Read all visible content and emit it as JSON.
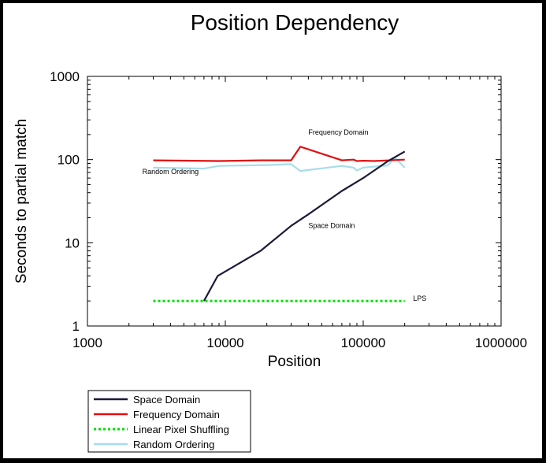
{
  "chart_data": {
    "type": "line",
    "title": "Position Dependency",
    "xlabel": "Position",
    "ylabel": "Seconds to partial match",
    "xscale": "log",
    "yscale": "log",
    "xlim": [
      1000,
      1000000
    ],
    "ylim": [
      1,
      1000
    ],
    "xticks": [
      "1000",
      "10000",
      "100000",
      "1000000"
    ],
    "yticks": [
      "1",
      "10",
      "100",
      "1000"
    ],
    "legend_position": "bottom-left, below plot",
    "grid": false,
    "series": [
      {
        "name": "Space Domain",
        "color": "#1a1a3a",
        "style": "solid",
        "points": [
          [
            7000,
            2
          ],
          [
            8800,
            4
          ],
          [
            18000,
            8
          ],
          [
            30000,
            16
          ],
          [
            40000,
            22
          ],
          [
            70000,
            42
          ],
          [
            100000,
            60
          ],
          [
            150000,
            95
          ],
          [
            200000,
            125
          ]
        ]
      },
      {
        "name": "Frequency Domain",
        "color": "#e01010",
        "style": "solid",
        "points": [
          [
            3000,
            98
          ],
          [
            9000,
            96
          ],
          [
            18000,
            98
          ],
          [
            30000,
            98
          ],
          [
            35000,
            143
          ],
          [
            70000,
            98
          ],
          [
            85000,
            100
          ],
          [
            90000,
            96
          ],
          [
            100000,
            97
          ],
          [
            120000,
            96
          ],
          [
            200000,
            100
          ]
        ]
      },
      {
        "name": "Linear Pixel Shuffling",
        "color": "#00dd00",
        "style": "dotted",
        "points": [
          [
            3000,
            2
          ],
          [
            200000,
            2
          ]
        ]
      },
      {
        "name": "Random Ordering",
        "color": "#a8dceb",
        "style": "solid",
        "points": [
          [
            3000,
            80
          ],
          [
            7000,
            78
          ],
          [
            9000,
            84
          ],
          [
            20000,
            86
          ],
          [
            30000,
            88
          ],
          [
            35000,
            73
          ],
          [
            70000,
            84
          ],
          [
            85000,
            80
          ],
          [
            90000,
            74
          ],
          [
            100000,
            80
          ],
          [
            150000,
            85
          ],
          [
            170000,
            105
          ],
          [
            200000,
            80
          ]
        ]
      }
    ],
    "annotations": [
      {
        "text": "Frequency Domain",
        "x": 40000,
        "y": 200
      },
      {
        "text": "Random Ordering",
        "x": 2500,
        "y": 67
      },
      {
        "text": "Space Domain",
        "x": 40000,
        "y": 15
      },
      {
        "text": "LPS",
        "x": 230000,
        "y": 2
      }
    ]
  }
}
